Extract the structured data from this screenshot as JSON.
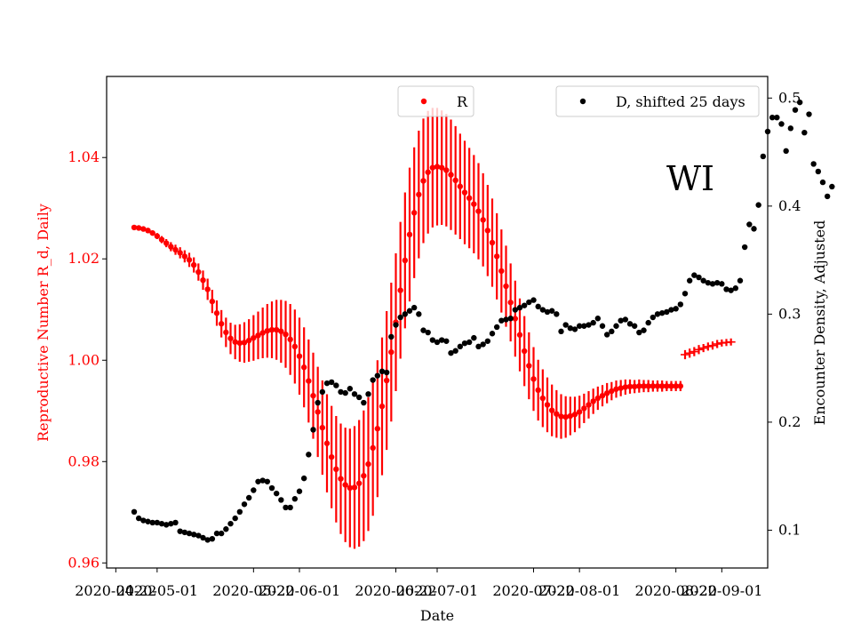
{
  "chart_data": {
    "type": "scatter",
    "title": "",
    "annotation": "WI",
    "xlabel": "Date",
    "ylabel_left": "Reproductive Number R_d, Daily",
    "ylabel_right": "Encounter Density, Adjusted",
    "xlim": [
      "2020-04-20",
      "2020-09-11"
    ],
    "ylim_left": [
      0.959,
      1.056
    ],
    "ylim_right": [
      0.065,
      0.52
    ],
    "x_ticks": [
      "2020-04-22",
      "2020-05-01",
      "2020-05-22",
      "2020-06-01",
      "2020-06-22",
      "2020-07-01",
      "2020-07-22",
      "2020-08-01",
      "2020-08-22",
      "2020-09-01"
    ],
    "y_ticks_left": [
      "0.96",
      "0.98",
      "1.00",
      "1.02",
      "1.04"
    ],
    "y_ticks_right": [
      "0.1",
      "0.2",
      "0.3",
      "0.4",
      "0.5"
    ],
    "legend_left": {
      "label": "R",
      "placement": "top-center"
    },
    "legend_right": {
      "label": "D, shifted 25 days",
      "placement": "top-right"
    },
    "colors": {
      "r_series": "#ff0000",
      "d_series": "#000000",
      "left_axis": "#ff0000"
    },
    "series": [
      {
        "name": "R",
        "axis": "left",
        "start_date": "2020-04-26",
        "values": [
          1.0262,
          1.0261,
          1.0259,
          1.0256,
          1.0251,
          1.0245,
          1.0238,
          1.0231,
          1.0224,
          1.0218,
          1.0212,
          1.0205,
          1.0198,
          1.0188,
          1.0174,
          1.0158,
          1.014,
          1.0116,
          1.0093,
          1.0072,
          1.0055,
          1.0043,
          1.0036,
          1.0034,
          1.0035,
          1.0039,
          1.0044,
          1.0049,
          1.0054,
          1.0058,
          1.006,
          1.006,
          1.0057,
          1.0051,
          1.0041,
          1.0027,
          1.0008,
          0.9986,
          0.9959,
          0.993,
          0.9898,
          0.9867,
          0.9836,
          0.9809,
          0.9785,
          0.9766,
          0.9754,
          0.9748,
          0.9749,
          0.9757,
          0.9772,
          0.9795,
          0.9827,
          0.9865,
          0.9909,
          0.996,
          1.0016,
          1.0075,
          1.0138,
          1.0197,
          1.0248,
          1.0291,
          1.0327,
          1.0354,
          1.0371,
          1.038,
          1.0382,
          1.038,
          1.0375,
          1.0366,
          1.0355,
          1.0343,
          1.0331,
          1.032,
          1.0308,
          1.0294,
          1.0277,
          1.0256,
          1.0232,
          1.0205,
          1.0176,
          1.0146,
          1.0114,
          1.0082,
          1.005,
          1.0018,
          0.9989,
          0.9963,
          0.9941,
          0.9925,
          0.9912,
          0.9901,
          0.9894,
          0.9889,
          0.9888,
          0.989,
          0.9893,
          0.9898,
          0.9905,
          0.9912,
          0.9919,
          0.9925,
          0.993,
          0.9935,
          0.9939,
          0.9943,
          0.9945,
          0.9947,
          0.9948,
          0.9948,
          0.9949,
          0.9949,
          0.9949,
          0.9949,
          0.9949,
          0.9949,
          0.9949,
          0.9949,
          0.9949,
          0.9949,
          1.0011,
          1.0014,
          1.0017,
          1.0021,
          1.0024,
          1.0027,
          1.0029,
          1.0032,
          1.0034,
          1.0035,
          1.0036
        ],
        "error": [
          0.0001,
          0.0002,
          0.0003,
          0.0004,
          0.0005,
          0.0006,
          0.0007,
          0.0008,
          0.0009,
          0.001,
          0.0011,
          0.0012,
          0.0014,
          0.0015,
          0.0017,
          0.0019,
          0.0021,
          0.0023,
          0.0025,
          0.0027,
          0.0029,
          0.0031,
          0.0034,
          0.0037,
          0.004,
          0.0042,
          0.0045,
          0.0047,
          0.005,
          0.0053,
          0.0056,
          0.0059,
          0.0062,
          0.0066,
          0.007,
          0.0073,
          0.0076,
          0.0079,
          0.0082,
          0.0085,
          0.0089,
          0.0093,
          0.0097,
          0.0101,
          0.0105,
          0.0109,
          0.0113,
          0.0117,
          0.0121,
          0.0125,
          0.0129,
          0.0132,
          0.0134,
          0.0135,
          0.0136,
          0.0137,
          0.0137,
          0.0136,
          0.0135,
          0.0134,
          0.0132,
          0.0129,
          0.0126,
          0.0123,
          0.0121,
          0.0118,
          0.0116,
          0.0113,
          0.0111,
          0.0109,
          0.0107,
          0.0104,
          0.0102,
          0.0099,
          0.0097,
          0.0095,
          0.0092,
          0.009,
          0.0087,
          0.0085,
          0.0082,
          0.008,
          0.0077,
          0.0075,
          0.0072,
          0.0069,
          0.0066,
          0.0063,
          0.006,
          0.0057,
          0.0054,
          0.0051,
          0.0047,
          0.0044,
          0.0041,
          0.0038,
          0.0035,
          0.0032,
          0.0029,
          0.0027,
          0.0025,
          0.0023,
          0.0021,
          0.002,
          0.0018,
          0.0017,
          0.0016,
          0.0015,
          0.0014,
          0.0013,
          0.0013,
          0.0012,
          0.0012,
          0.0011,
          0.0011,
          0.0011,
          0.001,
          0.001,
          0.001,
          0.001,
          0.0009,
          0.0009,
          0.0009,
          0.0009,
          0.0008,
          0.0008,
          0.0008,
          0.0008,
          0.0007,
          0.0007,
          0.0007
        ]
      },
      {
        "name": "D, shifted 25 days",
        "axis": "right",
        "start_date": "2020-04-26",
        "values": [
          0.117,
          0.111,
          0.109,
          0.108,
          0.107,
          0.107,
          0.106,
          0.105,
          0.106,
          0.107,
          0.099,
          0.098,
          0.097,
          0.096,
          0.095,
          0.093,
          0.091,
          0.092,
          0.097,
          0.097,
          0.101,
          0.106,
          0.111,
          0.117,
          0.124,
          0.13,
          0.137,
          0.145,
          0.146,
          0.145,
          0.139,
          0.134,
          0.128,
          0.121,
          0.121,
          0.129,
          0.136,
          0.148,
          0.17,
          0.193,
          0.218,
          0.228,
          0.236,
          0.237,
          0.234,
          0.228,
          0.227,
          0.231,
          0.226,
          0.223,
          0.218,
          0.226,
          0.239,
          0.243,
          0.247,
          0.246,
          0.279,
          0.29,
          0.297,
          0.3,
          0.303,
          0.306,
          0.3,
          0.285,
          0.283,
          0.276,
          0.274,
          0.276,
          0.275,
          0.264,
          0.266,
          0.27,
          0.273,
          0.274,
          0.278,
          0.27,
          0.272,
          0.275,
          0.282,
          0.288,
          0.294,
          0.295,
          0.296,
          0.304,
          0.306,
          0.308,
          0.311,
          0.313,
          0.307,
          0.304,
          0.302,
          0.303,
          0.3,
          0.284,
          0.29,
          0.287,
          0.286,
          0.289,
          0.289,
          0.29,
          0.292,
          0.296,
          0.289,
          0.281,
          0.284,
          0.289,
          0.294,
          0.295,
          0.291,
          0.289,
          0.283,
          0.285,
          0.292,
          0.297,
          0.3,
          0.301,
          0.302,
          0.304,
          0.305,
          0.309,
          0.319,
          0.331,
          0.336,
          0.334,
          0.331,
          0.329,
          0.328,
          0.329,
          0.328,
          0.323,
          0.322,
          0.324,
          0.331,
          0.362,
          0.383,
          0.379,
          0.401,
          0.446,
          0.469,
          0.482,
          0.482,
          0.476,
          0.451,
          0.472,
          0.489,
          0.496,
          0.468,
          0.485,
          0.439,
          0.432,
          0.422,
          0.409,
          0.418
        ]
      }
    ]
  }
}
